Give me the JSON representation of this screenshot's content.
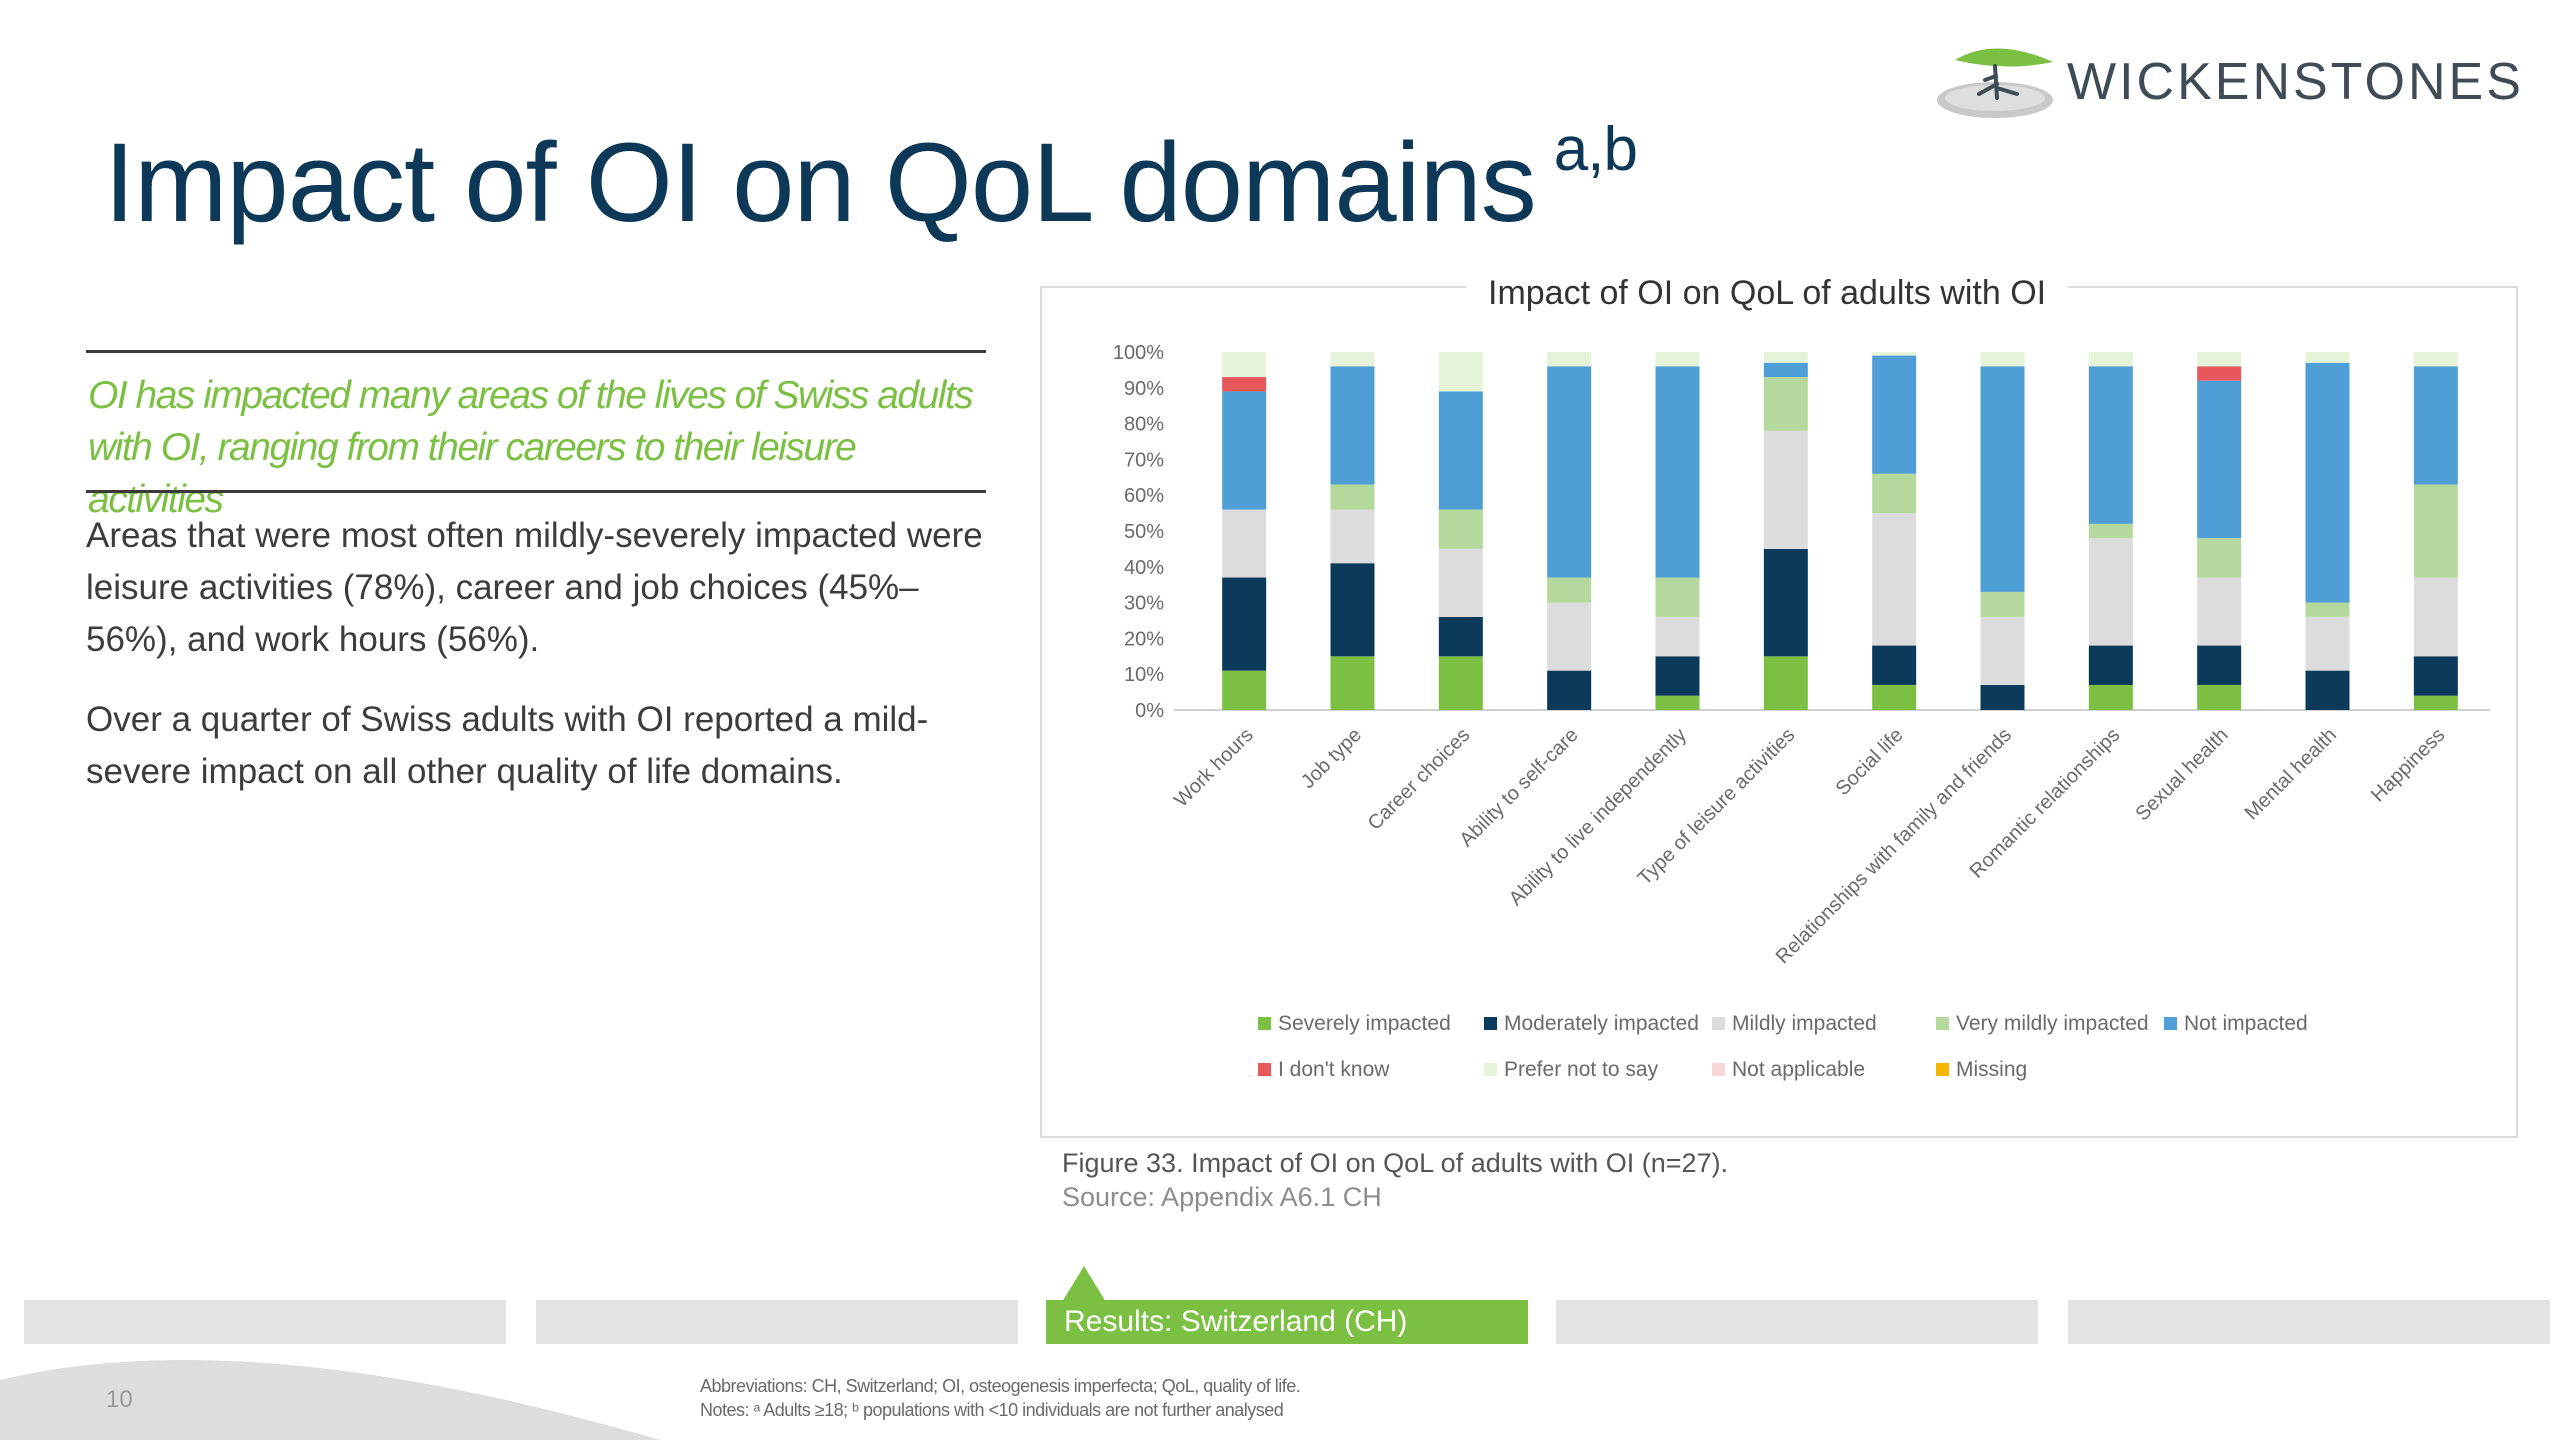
{
  "brand": {
    "name": "WICKENSTONES",
    "logo_icon": "tree-logo-icon"
  },
  "title": {
    "main": "Impact of OI on QoL domains",
    "superscript": "a,b"
  },
  "tagline": "OI has impacted many areas of the lives of Swiss adults with OI, ranging from their careers to their leisure activities",
  "paragraphs": [
    "Areas that were most often mildly-severely impacted were leisure activities (78%), career and job choices (45%–56%), and work hours (56%).",
    "Over a quarter of Swiss adults with OI reported a mild-severe impact on all other quality of life domains."
  ],
  "figure": {
    "caption": "Figure 33. Impact of OI on QoL of adults with OI (n=27).",
    "source": "Source: Appendix A6.1 CH"
  },
  "nav_tabs": [
    {
      "label": "",
      "active": false
    },
    {
      "label": "",
      "active": false
    },
    {
      "label": "Results: Switzerland (CH)",
      "active": true
    },
    {
      "label": "",
      "active": false
    },
    {
      "label": "",
      "active": false
    }
  ],
  "footer": {
    "page_number": "10",
    "abbreviations": "Abbreviations: CH, Switzerland; OI, osteogenesis imperfecta; QoL, quality of life.",
    "notes": "Notes: ᵃ Adults ≥18; ᵇ populations with <10 individuals are not further analysed"
  },
  "colors": {
    "title": "#0e3857",
    "accent_green": "#7bc043",
    "severely": "#7bc043",
    "moderately": "#0b3a5a",
    "mildly": "#dcdcdc",
    "very_mildly": "#b5d89c",
    "not_impacted": "#4f9fd6",
    "dont_know": "#e8575a",
    "prefer_not": "#e5f4d9",
    "not_applicable": "#f6d6d6",
    "missing": "#f4b400"
  },
  "chart_data": {
    "type": "bar",
    "stacked": true,
    "title": "Impact of OI on QoL of adults with OI",
    "xlabel": "",
    "ylabel": "",
    "ylim": [
      0,
      100
    ],
    "y_ticks": [
      "0%",
      "10%",
      "20%",
      "30%",
      "40%",
      "50%",
      "60%",
      "70%",
      "80%",
      "90%",
      "100%"
    ],
    "grid": false,
    "legend_position": "bottom",
    "categories": [
      "Work hours",
      "Job type",
      "Career choices",
      "Ability to self-care",
      "Ability to live independently",
      "Type of leisure activities",
      "Social life",
      "Relationships with family and friends",
      "Romantic relationships",
      "Sexual health",
      "Mental health",
      "Happiness"
    ],
    "series": [
      {
        "name": "Severely impacted",
        "color": "#7bc043",
        "values": [
          11,
          15,
          15,
          0,
          4,
          15,
          7,
          0,
          7,
          7,
          0,
          4
        ]
      },
      {
        "name": "Moderately impacted",
        "color": "#0b3a5a",
        "values": [
          26,
          26,
          11,
          11,
          11,
          30,
          11,
          7,
          11,
          11,
          11,
          11
        ]
      },
      {
        "name": "Mildly impacted",
        "color": "#dcdcdc",
        "values": [
          19,
          15,
          19,
          19,
          11,
          33,
          37,
          19,
          30,
          19,
          15,
          22
        ]
      },
      {
        "name": "Very mildly impacted",
        "color": "#b5d89c",
        "values": [
          0,
          7,
          11,
          7,
          11,
          15,
          11,
          7,
          4,
          11,
          4,
          26
        ]
      },
      {
        "name": "Not impacted",
        "color": "#4f9fd6",
        "values": [
          33,
          33,
          33,
          59,
          59,
          4,
          33,
          63,
          44,
          44,
          67,
          33
        ]
      },
      {
        "name": "I don't know",
        "color": "#e8575a",
        "values": [
          4,
          0,
          0,
          0,
          0,
          0,
          0,
          0,
          0,
          4,
          0,
          0
        ]
      },
      {
        "name": "Prefer not to say",
        "color": "#e5f4d9",
        "values": [
          7,
          4,
          11,
          4,
          4,
          3,
          1,
          4,
          4,
          4,
          3,
          4
        ]
      },
      {
        "name": "Not applicable",
        "color": "#f6d6d6",
        "values": [
          0,
          0,
          0,
          0,
          0,
          0,
          0,
          0,
          0,
          0,
          0,
          0
        ]
      },
      {
        "name": "Missing",
        "color": "#f4b400",
        "values": [
          0,
          0,
          0,
          0,
          0,
          0,
          0,
          0,
          0,
          0,
          0,
          0
        ]
      }
    ]
  }
}
